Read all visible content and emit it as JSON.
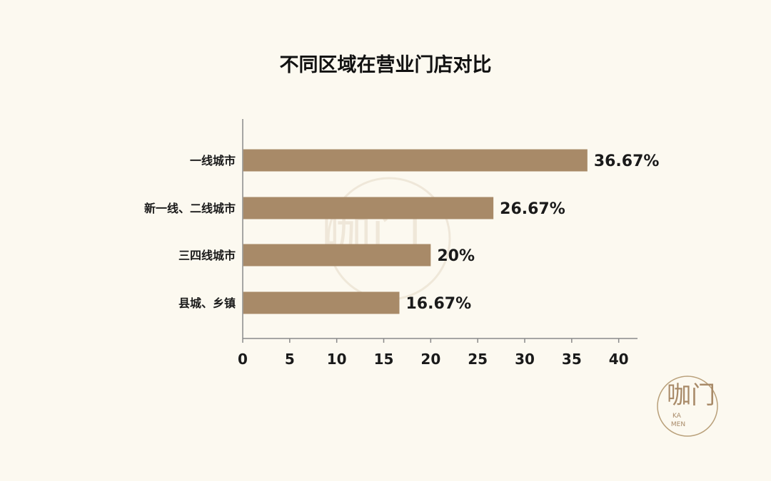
{
  "chart_data": {
    "type": "bar",
    "orientation": "horizontal",
    "title": "不同区域在营业门店对比",
    "categories": [
      "一线城市",
      "新一线、二线城市",
      "三四线城市",
      "县城、乡镇"
    ],
    "values": [
      36.67,
      26.67,
      20,
      16.67
    ],
    "data_labels": [
      "36.67%",
      "26.67%",
      "20%",
      "16.67%"
    ],
    "xticks": [
      "0",
      "5",
      "10",
      "15",
      "20",
      "25",
      "30",
      "35",
      "40"
    ],
    "xlim": [
      0,
      42
    ],
    "xlabel": "",
    "ylabel": "",
    "grid": false,
    "legend": "none",
    "colors": {
      "bar": "#a88a68",
      "axis": "#8a8a8a",
      "text": "#1a1a1a",
      "background": "#fcf9f0",
      "watermark": "#d8c8b0"
    }
  },
  "watermark": {
    "logo_glyphs": "咖门",
    "logo_latin_top": "KA",
    "logo_latin_bottom": "MEN"
  }
}
